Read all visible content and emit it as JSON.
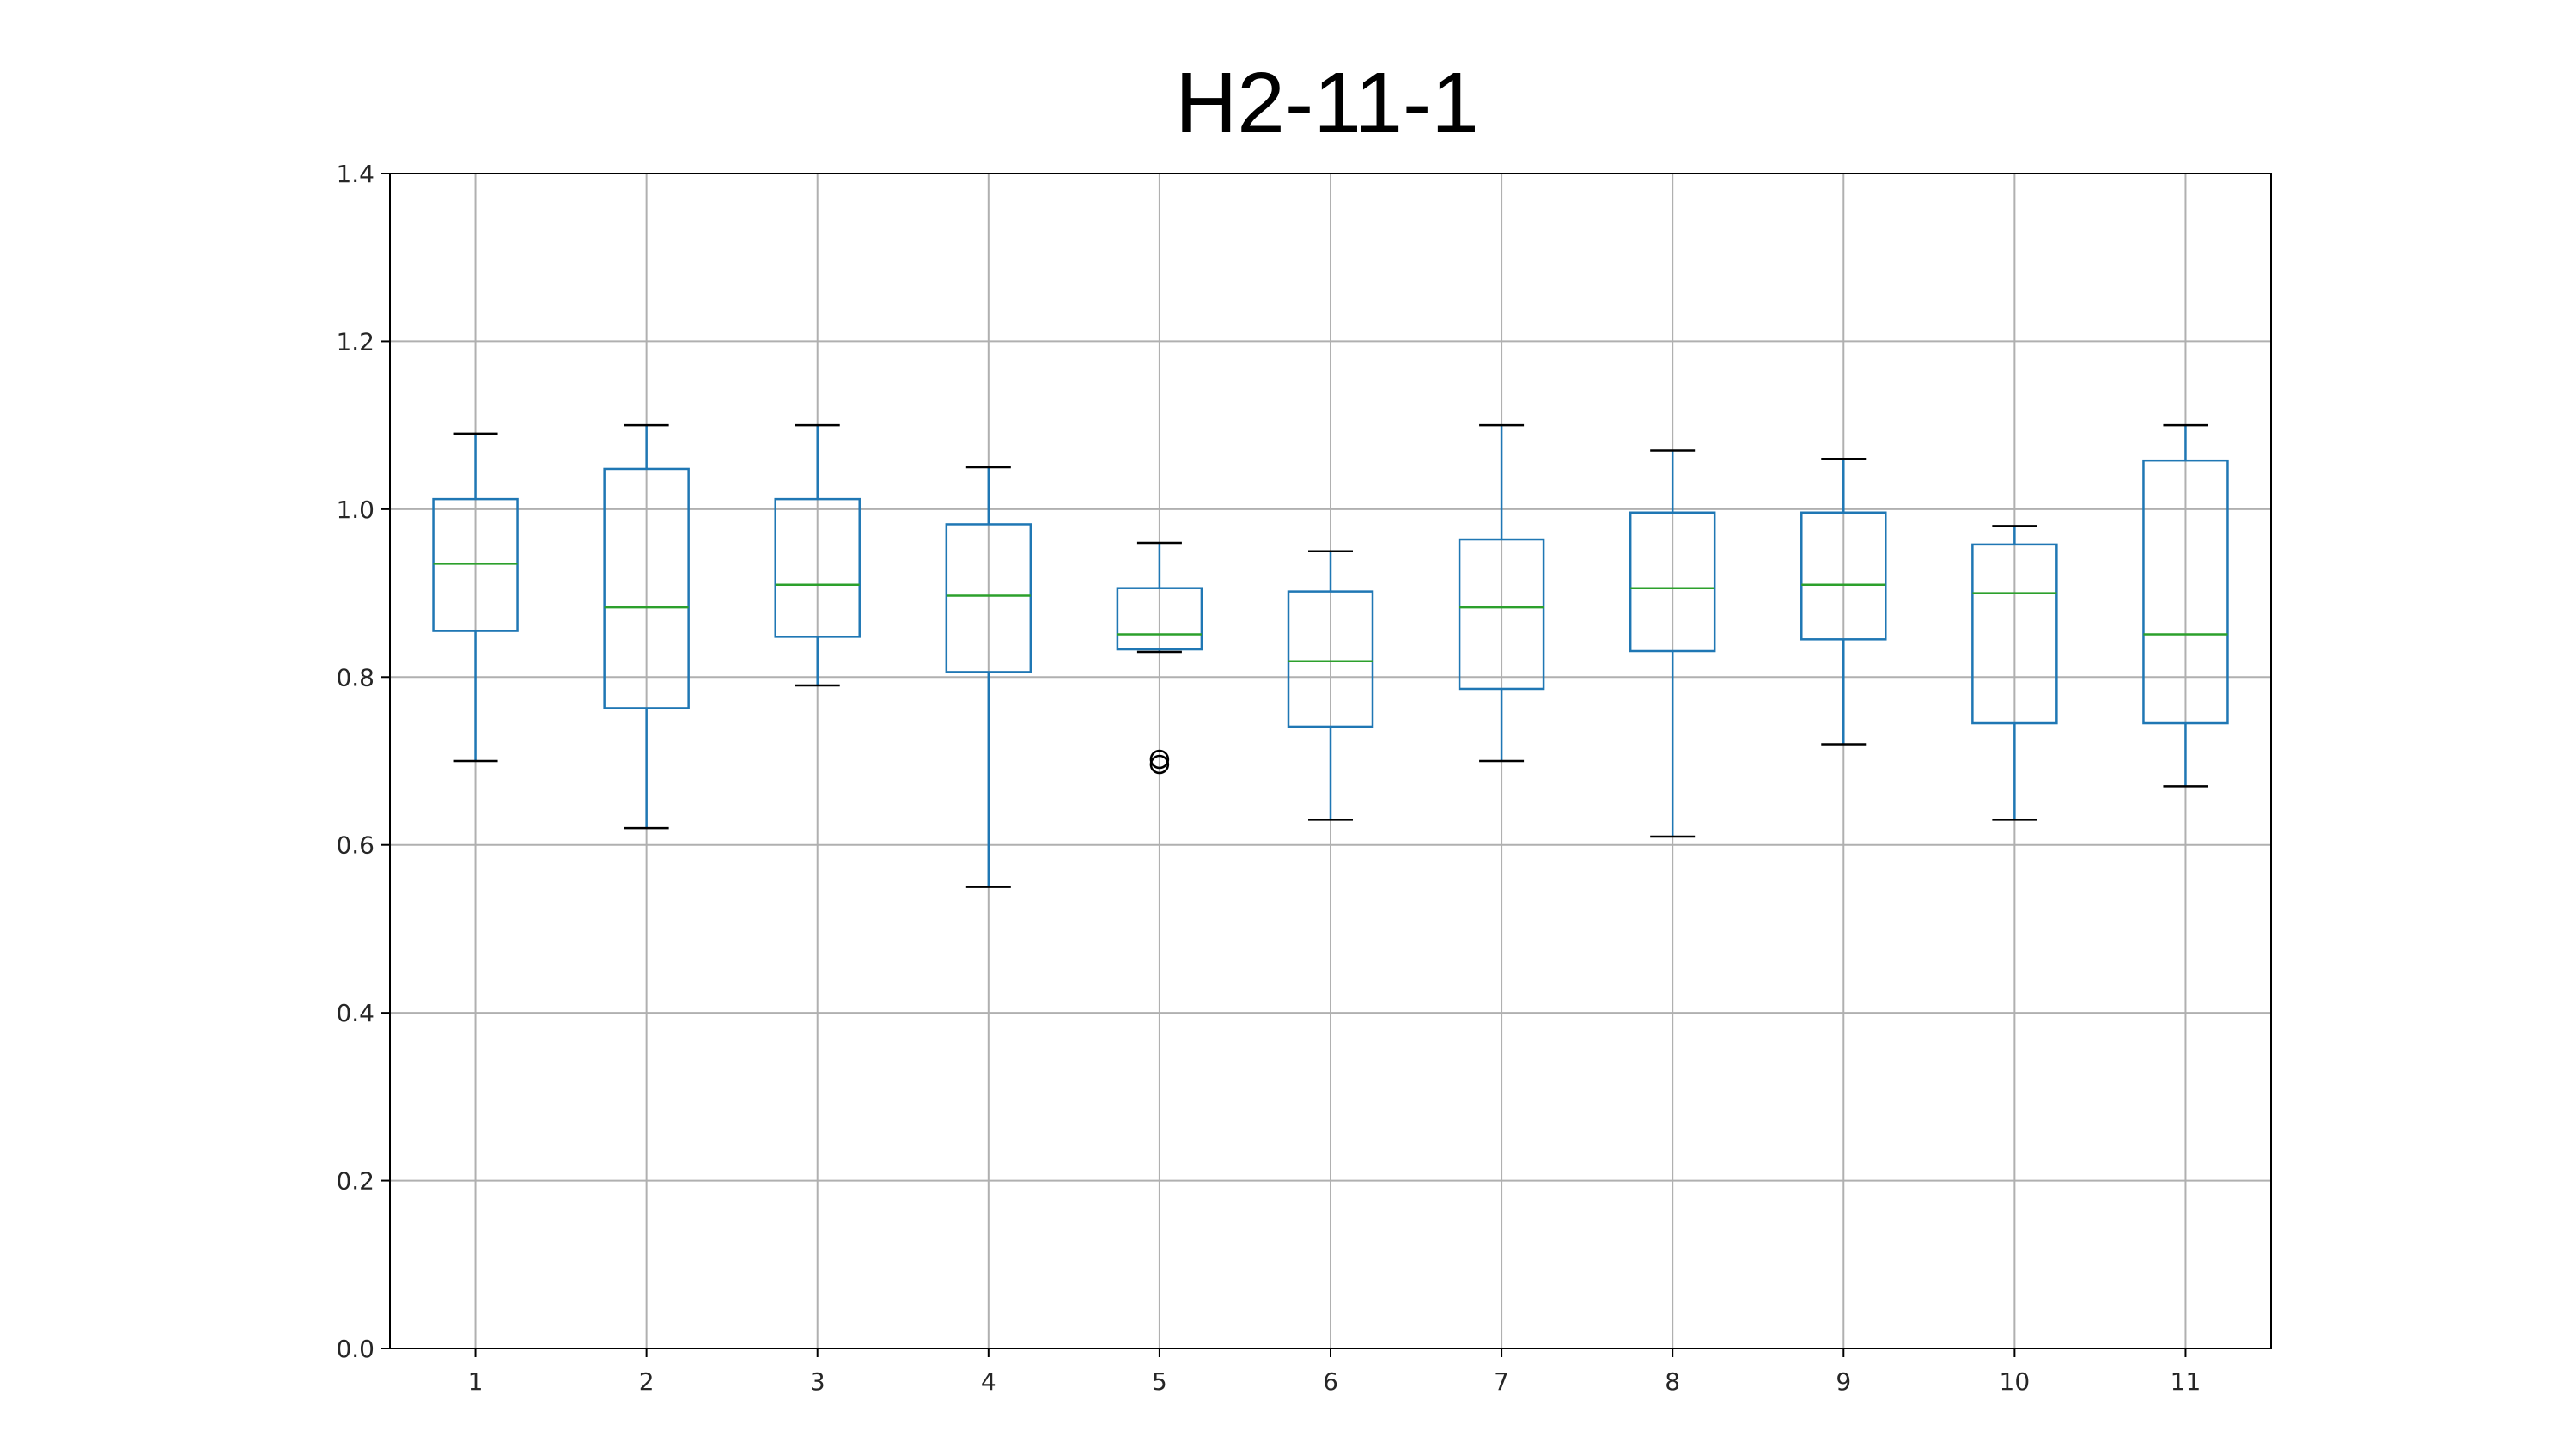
{
  "chart_data": {
    "type": "boxplot",
    "title": "H2-11-1",
    "xlabel": "",
    "ylabel": "",
    "ylim": [
      0.0,
      1.4
    ],
    "yticks": [
      "0.0",
      "0.2",
      "0.4",
      "0.6",
      "0.8",
      "1.0",
      "1.2",
      "1.4"
    ],
    "grid": true,
    "categories": [
      "1",
      "2",
      "3",
      "4",
      "5",
      "6",
      "7",
      "8",
      "9",
      "10",
      "11"
    ],
    "boxes": [
      {
        "category": "1",
        "whisker_low": 0.7,
        "q1": 0.855,
        "median": 0.935,
        "q3": 1.012,
        "whisker_high": 1.09,
        "outliers": []
      },
      {
        "category": "2",
        "whisker_low": 0.62,
        "q1": 0.763,
        "median": 0.883,
        "q3": 1.048,
        "whisker_high": 1.1,
        "outliers": []
      },
      {
        "category": "3",
        "whisker_low": 0.79,
        "q1": 0.848,
        "median": 0.91,
        "q3": 1.012,
        "whisker_high": 1.1,
        "outliers": []
      },
      {
        "category": "4",
        "whisker_low": 0.55,
        "q1": 0.806,
        "median": 0.897,
        "q3": 0.982,
        "whisker_high": 1.05,
        "outliers": []
      },
      {
        "category": "5",
        "whisker_low": 0.83,
        "q1": 0.833,
        "median": 0.851,
        "q3": 0.906,
        "whisker_high": 0.96,
        "outliers": [
          0.7,
          0.7
        ]
      },
      {
        "category": "6",
        "whisker_low": 0.63,
        "q1": 0.741,
        "median": 0.819,
        "q3": 0.902,
        "whisker_high": 0.95,
        "outliers": []
      },
      {
        "category": "7",
        "whisker_low": 0.7,
        "q1": 0.786,
        "median": 0.883,
        "q3": 0.964,
        "whisker_high": 1.1,
        "outliers": []
      },
      {
        "category": "8",
        "whisker_low": 0.61,
        "q1": 0.831,
        "median": 0.906,
        "q3": 0.996,
        "whisker_high": 1.07,
        "outliers": []
      },
      {
        "category": "9",
        "whisker_low": 0.72,
        "q1": 0.845,
        "median": 0.91,
        "q3": 0.996,
        "whisker_high": 1.06,
        "outliers": []
      },
      {
        "category": "10",
        "whisker_low": 0.63,
        "q1": 0.745,
        "median": 0.9,
        "q3": 0.958,
        "whisker_high": 0.98,
        "outliers": []
      },
      {
        "category": "11",
        "whisker_low": 0.67,
        "q1": 0.745,
        "median": 0.851,
        "q3": 1.058,
        "whisker_high": 1.1,
        "outliers": []
      }
    ],
    "colors": {
      "box": "#1f77b4",
      "median": "#2ca02c",
      "whisker_cap": "#000000",
      "outlier": "#000000",
      "grid": "#b0b0b0",
      "axes": "#000000"
    }
  }
}
